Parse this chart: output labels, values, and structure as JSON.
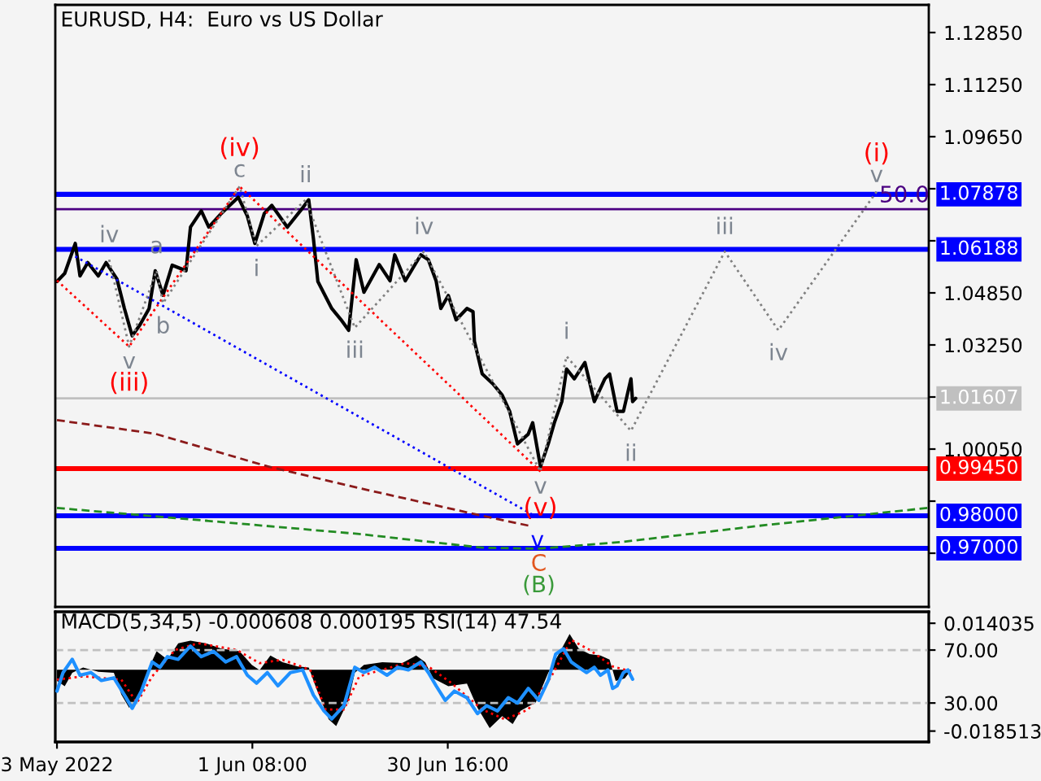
{
  "chart_data": [
    {
      "type": "line",
      "title": "EURUSD, H4:  Euro vs US Dollar",
      "tick_labels": "y",
      "xlim": [
        "2022-05-02T18:00",
        "2022-09-10T21:00"
      ],
      "ylim": [
        0.952,
        1.137
      ],
      "yticks": [
        {
          "value": 1.1285,
          "label": "1.12850"
        },
        {
          "value": 1.1125,
          "label": "1.11250"
        },
        {
          "value": 1.0965,
          "label": "1.09650"
        },
        {
          "value": 1.0805,
          "label": null
        },
        {
          "value": 1.0645,
          "label": null
        },
        {
          "value": 1.0485,
          "label": "1.04850"
        },
        {
          "value": 1.0325,
          "label": "1.03250"
        },
        {
          "value": 1.0165,
          "label": null
        },
        {
          "value": 1.0005,
          "label": "1.00050"
        },
        {
          "value": 0.9845,
          "label": null
        },
        {
          "value": 0.9685,
          "label": null
        }
      ],
      "series": [
        {
          "color": "#8b1a1a",
          "line_style": "dashed",
          "x": [
            "2022-05-03T00:00",
            "2022-05-17T18:00",
            "2022-06-03T14:00",
            "2022-06-17T09:00",
            "2022-07-05T20:00",
            "2022-07-12T18:00"
          ],
          "values": [
            1.0094,
            1.0052,
            0.9952,
            0.9885,
            0.98,
            0.977
          ]
        },
        {
          "color": "#228b22",
          "line_style": "dashed",
          "x": [
            "2022-05-03T00:00",
            "2022-05-25T08:00",
            "2022-06-17T09:00",
            "2022-07-05T20:00",
            "2022-07-14T08:00",
            "2022-07-26T14:00",
            "2022-08-16T07:00",
            "2022-09-10T16:00"
          ],
          "values": [
            0.9824,
            0.9785,
            0.9744,
            0.9702,
            0.9699,
            0.9719,
            0.9769,
            0.9824
          ]
        },
        {
          "color": "#0000ff",
          "line_style": "dotted",
          "x": [
            "2022-05-05T18:00",
            "2022-07-14T03:00"
          ],
          "values": [
            1.0597,
            0.9795
          ]
        },
        {
          "color": "#ff0000",
          "line_style": "dotted",
          "x": [
            "2022-05-03T00:00",
            "2022-05-13T20:00",
            "2022-05-30T10:00",
            "2022-07-14T14:00"
          ],
          "values": [
            1.0523,
            1.032,
            1.0812,
            0.9936
          ]
        },
        {
          "color": "#808080",
          "line_style": "dotted",
          "x": [
            "2022-05-10T20:00",
            "2022-05-13T20:00",
            "2022-05-17T23:00",
            "2022-05-18T22:00",
            "2022-05-30T10:00",
            "2022-06-01T23:00",
            "2022-06-09T08:00",
            "2022-06-16T17:00",
            "2022-06-27T02:00",
            "2022-07-14T14:00",
            "2022-07-18T12:00",
            "2022-07-28T04:00",
            "2022-08-11T06:00",
            "2022-08-19T07:00",
            "2022-09-03T01:00"
          ],
          "values": [
            1.0587,
            1.032,
            1.0553,
            1.0453,
            1.0812,
            1.0629,
            1.0771,
            1.0378,
            1.0612,
            0.9936,
            1.029,
            1.0061,
            1.0612,
            1.037,
            1.0796
          ]
        },
        {
          "color": "#000000",
          "line_style": "solid",
          "x": [
            "2022-05-03T00:00",
            "2022-05-04T04:00",
            "2022-05-05T18:00",
            "2022-05-06T11:00",
            "2022-05-07T15:00",
            "2022-05-09T05:00",
            "2022-05-10T09:00",
            "2022-05-12T00:00",
            "2022-05-13T03:00",
            "2022-05-14T07:00",
            "2022-05-15T11:00",
            "2022-05-16T20:00",
            "2022-05-17T18:00",
            "2022-05-18T22:00",
            "2022-05-20T07:00",
            "2022-05-22T09:00",
            "2022-05-23T01:00",
            "2022-05-24T16:00",
            "2022-05-25T19:00",
            "2022-05-27T16:00",
            "2022-05-30T05:00",
            "2022-05-31T14:00",
            "2022-06-01T17:00",
            "2022-06-03T03:00",
            "2022-06-04T06:00",
            "2022-06-06T14:00",
            "2022-06-08T21:00",
            "2022-06-09T19:00",
            "2022-06-10T12:00",
            "2022-06-11T04:00",
            "2022-06-13T06:00",
            "2022-06-14T15:00",
            "2022-06-15T19:00",
            "2022-06-16T22:00",
            "2022-06-18T02:00",
            "2022-06-20T09:00",
            "2022-06-22T00:00",
            "2022-06-22T17:00",
            "2022-06-24T07:00",
            "2022-06-26T15:00",
            "2022-06-27T18:00",
            "2022-06-28T22:00",
            "2022-06-29T15:00",
            "2022-06-30T18:00",
            "2022-07-01T22:00",
            "2022-07-03T13:00",
            "2022-07-04T11:00",
            "2022-07-04T16:00",
            "2022-07-05T20:00",
            "2022-07-07T11:00",
            "2022-07-08T20:00",
            "2022-07-09T23:00",
            "2022-07-11T03:00",
            "2022-07-12T18:00",
            "2022-07-13T10:00",
            "2022-07-14T14:00",
            "2022-07-15T18:00",
            "2022-07-16T16:00",
            "2022-07-17T19:00",
            "2022-07-18T12:00",
            "2022-07-19T16:00",
            "2022-07-21T06:00",
            "2022-07-22T16:00",
            "2022-07-24T06:00",
            "2022-07-24T23:00",
            "2022-07-26T02:00",
            "2022-07-27T01:00",
            "2022-07-28T04:00",
            "2022-07-28T10:00",
            "2022-07-28T21:00"
          ],
          "values": [
            1.052,
            1.0545,
            1.0637,
            1.0537,
            1.0578,
            1.0537,
            1.0578,
            1.0528,
            1.0437,
            1.0353,
            1.0387,
            1.0437,
            1.0553,
            1.0478,
            1.057,
            1.0553,
            1.0687,
            1.0737,
            1.0687,
            1.0729,
            1.0779,
            1.0721,
            1.0637,
            1.0729,
            1.0754,
            1.0687,
            1.0746,
            1.0771,
            1.0652,
            1.052,
            1.0437,
            1.0403,
            1.037,
            1.0587,
            1.0487,
            1.0572,
            1.0522,
            1.0602,
            1.0522,
            1.0602,
            1.0587,
            1.0522,
            1.0437,
            1.0477,
            1.0402,
            1.0437,
            1.0427,
            1.0336,
            1.0236,
            1.0205,
            1.0171,
            1.0121,
            1.0021,
            1.0051,
            1.0086,
            0.9951,
            1.0021,
            1.0086,
            1.0151,
            1.0251,
            1.0221,
            1.0271,
            1.0151,
            1.0221,
            1.0236,
            1.0121,
            1.0121,
            1.0221,
            1.0151,
            1.0161
          ]
        }
      ],
      "ref_lines": [
        {
          "axis": "y",
          "value": 1.07878,
          "label": "1.07878",
          "color": "#0000ff"
        },
        {
          "axis": "y",
          "value": 1.0742,
          "color": "#4b0082"
        },
        {
          "axis": "y",
          "value": 1.06188,
          "label": "1.06188",
          "color": "#0000ff"
        },
        {
          "axis": "y",
          "value": 1.01607,
          "label": "1.01607",
          "color": "#c0c0c0"
        },
        {
          "axis": "y",
          "value": 0.9945,
          "label": "0.99450",
          "color": "#ff0000"
        },
        {
          "axis": "y",
          "value": 0.98,
          "label": "0.98000",
          "color": "#0000ff"
        },
        {
          "axis": "y",
          "value": 0.97,
          "label": "0.97000",
          "color": "#0000ff"
        }
      ],
      "annotations": [
        {
          "text": "c",
          "x": "2022-05-30T10:00",
          "y": 1.0812
        },
        {
          "text": "(iv)",
          "x": "2022-05-30T10:00",
          "y": 1.0812
        },
        {
          "text": "ii",
          "x": "2022-06-09T08:00",
          "y": 1.0771
        },
        {
          "text": "iv",
          "x": "2022-05-10T20:00",
          "y": 1.0587
        },
        {
          "text": "a",
          "x": "2022-05-17T23:00",
          "y": 1.0553
        },
        {
          "text": "i",
          "x": "2022-06-01T23:00",
          "y": 1.0629
        },
        {
          "text": "b",
          "x": "2022-05-18T22:00",
          "y": 1.0453
        },
        {
          "text": "v",
          "x": "2022-05-13T20:00",
          "y": 1.032
        },
        {
          "text": "(iii)",
          "x": "2022-05-13T20:00",
          "y": 1.032
        },
        {
          "text": "iii",
          "x": "2022-06-16T17:00",
          "y": 1.0378
        },
        {
          "text": "iv",
          "x": "2022-06-27T02:00",
          "y": 1.0612
        },
        {
          "text": "i",
          "x": "2022-07-18T12:00",
          "y": 1.029
        },
        {
          "text": "ii",
          "x": "2022-07-28T04:00",
          "y": 1.0061
        },
        {
          "text": "v",
          "x": "2022-07-14T14:00",
          "y": 0.9936
        },
        {
          "text": "(v)",
          "x": "2022-07-14T14:00",
          "y": 0.9936
        },
        {
          "text": "v",
          "x": "2022-07-14T03:00",
          "y": 0.9795
        },
        {
          "text": "C",
          "x": "2022-07-14T08:00",
          "y": 0.9699
        },
        {
          "text": "(B)",
          "x": "2022-07-14T08:00",
          "y": 0.9699
        },
        {
          "text": "iii",
          "x": "2022-08-11T06:00",
          "y": 1.0612
        },
        {
          "text": "iv",
          "x": "2022-08-19T07:00",
          "y": 1.037
        },
        {
          "text": "v",
          "x": "2022-09-03T01:00",
          "y": 1.0796
        },
        {
          "text": "(i)",
          "x": "2022-09-03T01:00",
          "y": 1.0796
        },
        {
          "text": "50.0",
          "x": "2022-09-07T05:00",
          "y": 1.0742
        }
      ]
    },
    {
      "type": "area",
      "title": "MACD(5,34,5) -0.000608 0.000195 RSI(14) 47.54",
      "xlim": [
        "2022-05-02T18:00",
        "2022-09-10T21:00"
      ],
      "xticks": [
        {
          "value": "2022-05-03T00:00",
          "label": "3 May 2022"
        },
        {
          "value": "2022-06-01T08:00",
          "label": "1 Jun 08:00"
        },
        {
          "value": "2022-06-30T16:00",
          "label": "30 Jun 16:00"
        }
      ],
      "ylim": [
        -0.0218,
        0.0175
      ],
      "yticks": [
        0.014035,
        -0.018513
      ],
      "y2lim": [
        0.6,
        98.9
      ],
      "y2ticks": [
        {
          "value": 70,
          "label": "70.00"
        },
        {
          "value": 30,
          "label": "30.00"
        }
      ],
      "series": [
        {
          "color": "#000000",
          "x": [
            "2022-05-03T00:00",
            "2022-05-04T04:00",
            "2022-05-05T07:00",
            "2022-05-06T22:00",
            "2022-05-09T05:00",
            "2022-05-11T13:00",
            "2022-05-12T16:00",
            "2022-05-13T20:00",
            "2022-05-15T11:00",
            "2022-05-16T20:00",
            "2022-05-17T23:00",
            "2022-05-19T14:00",
            "2022-05-21T05:00",
            "2022-05-23T01:00",
            "2022-05-25T08:00",
            "2022-05-27T16:00",
            "2022-05-30T10:00",
            "2022-06-01T06:00",
            "2022-06-02T10:00",
            "2022-06-04T01:00",
            "2022-06-05T21:00",
            "2022-06-08T04:00",
            "2022-06-09T19:00",
            "2022-06-10T23:00",
            "2022-06-12T19:00",
            "2022-06-13T22:00",
            "2022-06-15T19:00",
            "2022-06-16T17:00",
            "2022-06-18T02:00",
            "2022-06-20T20:00",
            "2022-06-23T20:00",
            "2022-06-25T22:00",
            "2022-06-27T07:00",
            "2022-06-28T11:00",
            "2022-06-30T18:00",
            "2022-07-03T13:00",
            "2022-07-05T03:00",
            "2022-07-06T23:00",
            "2022-07-08T20:00",
            "2022-07-10T10:00",
            "2022-07-11T14:00",
            "2022-07-13T21:00",
            "2022-07-15T18:00",
            "2022-07-17T08:00",
            "2022-07-18T23:00",
            "2022-07-20T08:00",
            "2022-07-21T23:00",
            "2022-07-23T14:00",
            "2022-07-24T23:00",
            "2022-07-25T21:00",
            "2022-07-27T06:00",
            "2022-07-28T04:00"
          ],
          "values": [
            -0.0034,
            -0.005,
            -0.0009,
            0.0007,
            -0.0006,
            -0.0009,
            -0.0075,
            -0.0115,
            -0.0075,
            0.0007,
            0.0056,
            0.0031,
            0.008,
            0.0088,
            0.008,
            0.0064,
            0.0056,
            0.0015,
            -0.0001,
            0.0043,
            0.0023,
            0.001,
            0.0007,
            -0.0058,
            -0.015,
            -0.017,
            -0.0091,
            -0.0009,
            0.0015,
            0.0023,
            0.002,
            0.0043,
            0.0023,
            -0.0026,
            -0.005,
            -0.0042,
            -0.0115,
            -0.0176,
            -0.014,
            -0.0164,
            -0.0124,
            -0.0099,
            -0.0009,
            0.0047,
            0.0108,
            0.0064,
            0.0047,
            0.0043,
            0.0031,
            -0.0034,
            -0.0026,
            -0.0001
          ]
        },
        {
          "type": "line",
          "color": "#ff0000",
          "line_style": "dotted",
          "x": [
            "2022-05-03T00:00",
            "2022-05-06T22:00",
            "2022-05-12T16:00",
            "2022-05-15T00:00",
            "2022-05-17T07:00",
            "2022-05-20T18:00",
            "2022-05-24T05:00",
            "2022-05-29T23:00",
            "2022-06-02T10:00",
            "2022-06-05T21:00",
            "2022-06-10T00:00",
            "2022-06-12T08:00",
            "2022-06-15T02:00",
            "2022-06-17T09:00",
            "2022-06-24T07:00",
            "2022-06-27T18:00",
            "2022-07-01T05:00",
            "2022-07-05T20:00",
            "2022-07-09T07:00",
            "2022-07-12T18:00",
            "2022-07-16T05:00",
            "2022-07-19T05:00",
            "2022-07-21T23:00",
            "2022-07-25T10:00",
            "2022-07-28T04:00"
          ],
          "values": [
            -0.003,
            -0.002,
            -0.003,
            -0.01,
            -0.002,
            0.006,
            0.008,
            0.006,
            0.002,
            0.003,
            0.0,
            -0.012,
            -0.012,
            -0.002,
            0.002,
            0.001,
            -0.004,
            -0.012,
            -0.015,
            -0.012,
            -0.002,
            0.009,
            0.006,
            0.001,
            -0.0005
          ]
        },
        {
          "type": "line",
          "axis": "y2",
          "color": "#1e90ff",
          "line_style": "solid",
          "x": [
            "2022-05-03T00:00",
            "2022-05-03T22:00",
            "2022-05-05T07:00",
            "2022-05-06T11:00",
            "2022-05-08T02:00",
            "2022-05-09T16:00",
            "2022-05-11T13:00",
            "2022-05-13T09:00",
            "2022-05-14T07:00",
            "2022-05-15T16:00",
            "2022-05-17T07:00",
            "2022-05-18T11:00",
            "2022-05-19T14:00",
            "2022-05-21T05:00",
            "2022-05-23T01:00",
            "2022-05-24T16:00",
            "2022-05-26T12:00",
            "2022-05-28T08:00",
            "2022-05-29T23:00",
            "2022-05-31T14:00",
            "2022-06-01T23:00",
            "2022-06-03T14:00",
            "2022-06-05T04:00",
            "2022-06-07T01:00",
            "2022-06-08T21:00",
            "2022-06-10T12:00",
            "2022-06-12T02:00",
            "2022-06-13T06:00",
            "2022-06-15T02:00",
            "2022-06-16T17:00",
            "2022-06-18T02:00",
            "2022-06-19T17:00",
            "2022-06-21T13:00",
            "2022-06-23T04:00",
            "2022-06-24T18:00",
            "2022-06-26T15:00",
            "2022-06-27T18:00",
            "2022-06-28T22:00",
            "2022-06-30T07:00",
            "2022-07-01T16:00",
            "2022-07-03T13:00",
            "2022-07-05T03:00",
            "2022-07-06T12:00",
            "2022-07-08T03:00",
            "2022-07-09T18:00",
            "2022-07-11T03:00",
            "2022-07-12T18:00",
            "2022-07-14T08:00",
            "2022-07-15T18:00",
            "2022-07-16T21:00",
            "2022-07-18T01:00",
            "2022-07-19T05:00",
            "2022-07-20T08:00",
            "2022-07-21T12:00",
            "2022-07-22T16:00",
            "2022-07-23T14:00",
            "2022-07-24T17:00",
            "2022-07-25T10:00",
            "2022-07-26T02:00",
            "2022-07-27T01:00",
            "2022-07-27T17:00",
            "2022-07-28T10:00"
          ],
          "values": [
            39,
            53,
            63,
            51,
            53,
            47,
            49,
            34,
            26,
            39,
            61,
            57,
            65,
            63,
            73,
            65,
            69,
            61,
            65,
            51,
            45,
            53,
            43,
            53,
            55,
            36,
            24,
            18,
            28,
            57,
            53,
            57,
            51,
            57,
            55,
            61,
            53,
            43,
            32,
            39,
            34,
            22,
            28,
            24,
            34,
            30,
            41,
            32,
            47,
            67,
            71,
            61,
            57,
            53,
            57,
            51,
            55,
            41,
            43,
            53,
            55,
            48
          ]
        }
      ],
      "ref_lines": [
        {
          "axis": "y2",
          "value": 70,
          "color": "#c0c0c0",
          "line_style": "dashed"
        },
        {
          "axis": "y2",
          "value": 30,
          "color": "#c0c0c0",
          "line_style": "dashed"
        }
      ]
    }
  ]
}
